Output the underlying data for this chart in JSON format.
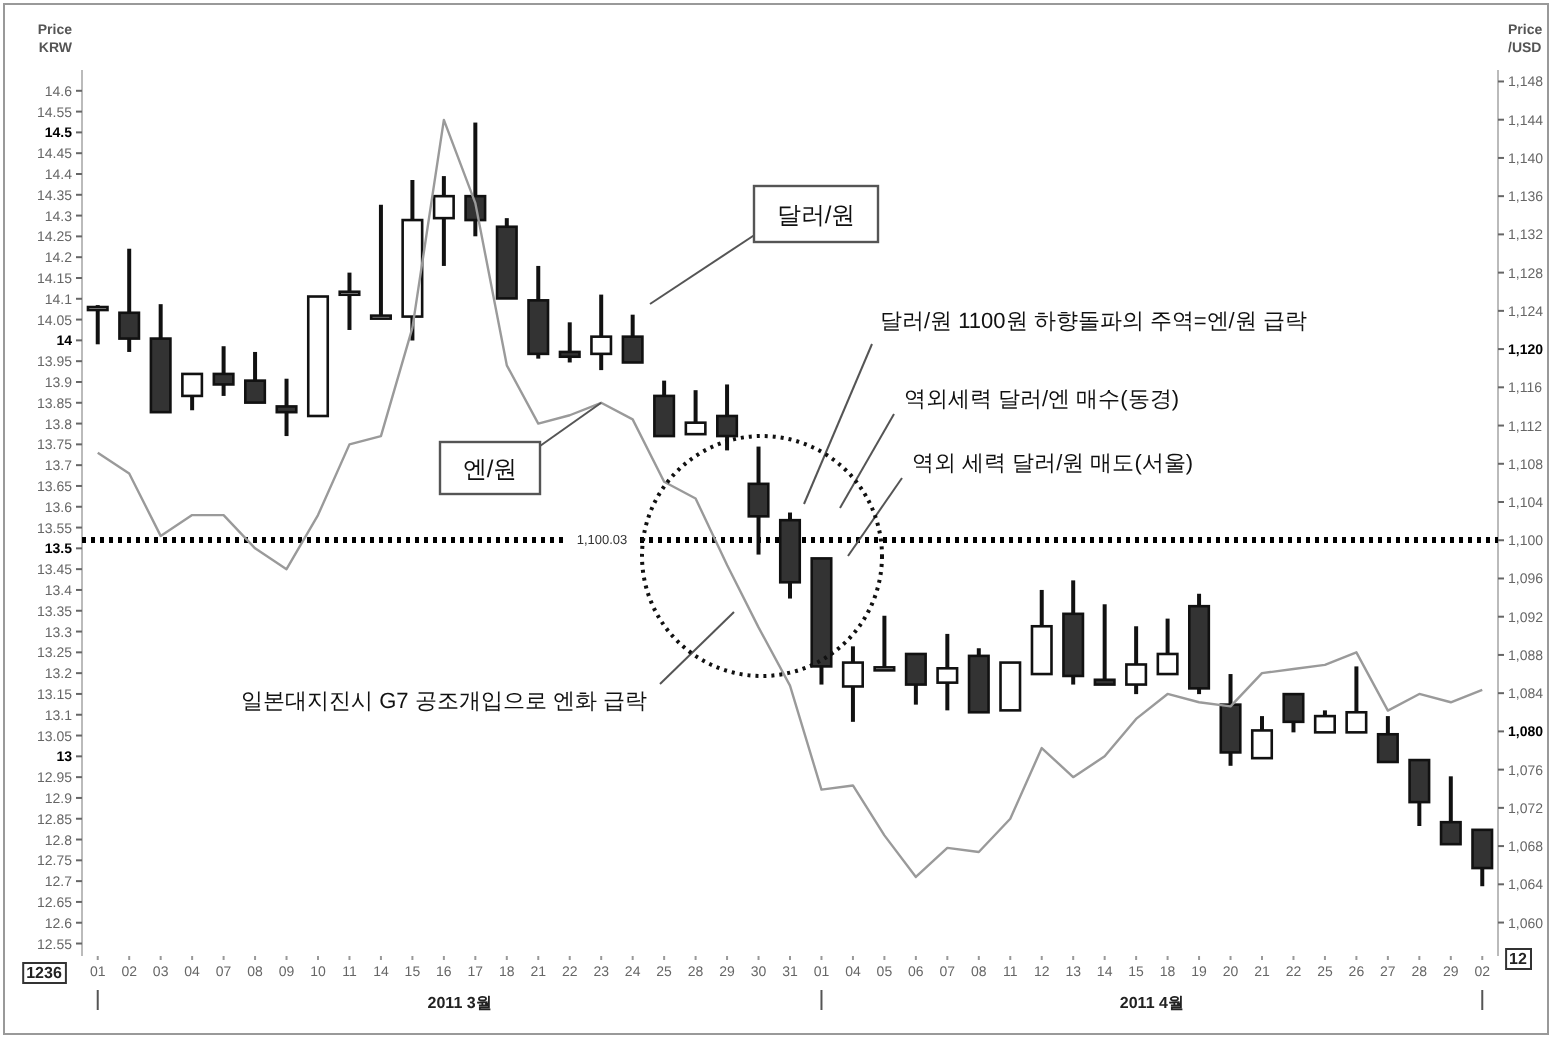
{
  "chart_data": {
    "type": "candlestick",
    "ylabel": "Price\nKRW",
    "y2label": "Price\n/USD",
    "categories": [
      "01",
      "02",
      "03",
      "04",
      "07",
      "08",
      "09",
      "10",
      "11",
      "14",
      "15",
      "16",
      "17",
      "18",
      "21",
      "22",
      "23",
      "24",
      "25",
      "28",
      "29",
      "30",
      "31",
      "01",
      "04",
      "05",
      "06",
      "07",
      "08",
      "11",
      "12",
      "13",
      "14",
      "15",
      "18",
      "19",
      "20",
      "21",
      "22",
      "25",
      "26",
      "27",
      "28",
      "29",
      "02"
    ],
    "series": [
      {
        "type": "line",
        "color": "#9a9a9a",
        "values": [
          13.73,
          13.68,
          13.53,
          13.58,
          13.58,
          13.5,
          13.45,
          13.58,
          13.75,
          13.77,
          14.03,
          14.53,
          14.33,
          13.94,
          13.8,
          13.82,
          13.85,
          13.81,
          13.66,
          13.62,
          13.46,
          13.31,
          13.17,
          12.92,
          12.93,
          12.81,
          12.71,
          12.78,
          12.77,
          12.85,
          13.02,
          12.95,
          13.0,
          13.09,
          13.15,
          13.13,
          13.12,
          13.2,
          13.21,
          13.22,
          13.25,
          13.11,
          13.15,
          13.13,
          13.16
        ]
      },
      {
        "type": "candlestick",
        "axis": "y2",
        "ohlc": [
          [
            1124.2,
            1124.6,
            1120.5,
            1124.4
          ],
          [
            1123.8,
            1130.5,
            1119.7,
            1121.1
          ],
          [
            1121.1,
            1124.7,
            1113.4,
            1113.4
          ],
          [
            1115.1,
            1117.4,
            1113.6,
            1117.4
          ],
          [
            1117.4,
            1120.3,
            1115.1,
            1116.3
          ],
          [
            1116.7,
            1119.7,
            1114.4,
            1114.4
          ],
          [
            1114.0,
            1116.9,
            1110.9,
            1113.4
          ],
          [
            1113.0,
            1125.5,
            1113.0,
            1125.5
          ],
          [
            1125.8,
            1128.0,
            1122.0,
            1126.0
          ],
          [
            1123.3,
            1135.1,
            1123.3,
            1123.5
          ],
          [
            1123.4,
            1137.7,
            1120.9,
            1133.5
          ],
          [
            1133.7,
            1138.1,
            1128.7,
            1136.0
          ],
          [
            1136.0,
            1143.7,
            1131.8,
            1133.5
          ],
          [
            1132.8,
            1133.7,
            1125.3,
            1125.3
          ],
          [
            1125.1,
            1128.7,
            1119.0,
            1119.5
          ],
          [
            1119.7,
            1122.8,
            1118.6,
            1119.2
          ],
          [
            1119.5,
            1125.7,
            1117.8,
            1121.3
          ],
          [
            1121.3,
            1123.6,
            1118.6,
            1118.6
          ],
          [
            1115.1,
            1116.7,
            1110.9,
            1110.9
          ],
          [
            1111.1,
            1115.7,
            1111.1,
            1112.3
          ],
          [
            1113.0,
            1116.3,
            1109.4,
            1110.9
          ],
          [
            1105.9,
            1109.8,
            1098.5,
            1102.5
          ],
          [
            1102.1,
            1102.9,
            1093.9,
            1095.6
          ],
          [
            1098.1,
            1098.1,
            1084.9,
            1086.8
          ],
          [
            1084.7,
            1088.9,
            1081.0,
            1087.2
          ],
          [
            1086.5,
            1092.1,
            1086.5,
            1086.7
          ],
          [
            1088.1,
            1088.1,
            1082.8,
            1084.9
          ],
          [
            1085.1,
            1090.2,
            1082.2,
            1086.6
          ],
          [
            1087.9,
            1088.7,
            1082.0,
            1082.0
          ],
          [
            1082.2,
            1087.2,
            1082.2,
            1087.2
          ],
          [
            1086.0,
            1094.8,
            1086.0,
            1091.0
          ],
          [
            1092.3,
            1095.8,
            1084.9,
            1085.8
          ],
          [
            1085.4,
            1093.3,
            1084.9,
            1084.9
          ],
          [
            1084.9,
            1091.0,
            1083.9,
            1087.0
          ],
          [
            1086.0,
            1091.8,
            1086.0,
            1088.1
          ],
          [
            1093.1,
            1094.4,
            1083.9,
            1084.5
          ],
          [
            1082.8,
            1086.0,
            1076.4,
            1077.8
          ],
          [
            1077.2,
            1081.6,
            1077.2,
            1080.1
          ],
          [
            1083.9,
            1083.9,
            1079.9,
            1081.0
          ],
          [
            1079.9,
            1082.2,
            1079.9,
            1081.6
          ],
          [
            1079.9,
            1086.8,
            1079.9,
            1082.0
          ],
          [
            1079.7,
            1081.6,
            1076.8,
            1076.8
          ],
          [
            1077.0,
            1077.0,
            1070.1,
            1072.6
          ],
          [
            1070.5,
            1075.3,
            1068.2,
            1068.2
          ],
          [
            1069.7,
            1069.7,
            1063.8,
            1065.7
          ]
        ]
      }
    ],
    "ylim": [
      12.52,
      14.65
    ],
    "yticks": [
      12.55,
      12.6,
      12.65,
      12.7,
      12.75,
      12.8,
      12.85,
      12.9,
      12.95,
      13,
      13.05,
      13.1,
      13.15,
      13.2,
      13.25,
      13.3,
      13.35,
      13.4,
      13.45,
      13.5,
      13.55,
      13.6,
      13.65,
      13.7,
      13.75,
      13.8,
      13.85,
      13.9,
      13.95,
      14,
      14.05,
      14.1,
      14.15,
      14.2,
      14.25,
      14.3,
      14.35,
      14.4,
      14.45,
      14.5,
      14.55,
      14.6
    ],
    "y2lim": [
      1056.5,
      1149.2
    ],
    "y2ticks": [
      {
        "value": 1060,
        "label": "1,060"
      },
      {
        "value": 1064,
        "label": "1,064"
      },
      {
        "value": 1068,
        "label": "1,068"
      },
      {
        "value": 1072,
        "label": "1,072"
      },
      {
        "value": 1076,
        "label": "1,076"
      },
      {
        "value": 1080,
        "label": "1,080"
      },
      {
        "value": 1084,
        "label": "1,084"
      },
      {
        "value": 1088,
        "label": "1,088"
      },
      {
        "value": 1092,
        "label": "1,092"
      },
      {
        "value": 1096,
        "label": "1,096"
      },
      {
        "value": 1100,
        "label": "1,100"
      },
      {
        "value": 1104,
        "label": "1,104"
      },
      {
        "value": 1108,
        "label": "1,108"
      },
      {
        "value": 1112,
        "label": "1,112"
      },
      {
        "value": 1116,
        "label": "1,116"
      },
      {
        "value": 1120,
        "label": "1,120"
      },
      {
        "value": 1124,
        "label": "1,124"
      },
      {
        "value": 1128,
        "label": "1,128"
      },
      {
        "value": 1132,
        "label": "1,132"
      },
      {
        "value": 1136,
        "label": "1,136"
      },
      {
        "value": 1140,
        "label": "1,140"
      },
      {
        "value": 1144,
        "label": "1,144"
      },
      {
        "value": 1148,
        "label": "1,148"
      }
    ],
    "ref_lines": [
      {
        "axis": "y2",
        "value": 1100.03,
        "label": "1,100.03",
        "color": "#000000",
        "line_style": "dotted"
      }
    ],
    "annotations": [
      "달러/원",
      {
        "text": "엔/원",
        "x": "23",
        "y": 13.85
      },
      "달러/원 1100원 하향돌파의 주역=엔/원 급락",
      "역외세력 달러/엔 매수(동경)",
      "역외 세력 달러/원 매도(서울)",
      "일본대지진시 G7 공조개입으로 엔화 급락",
      "2011 3월",
      "2011 4월",
      "1236",
      "12"
    ]
  }
}
